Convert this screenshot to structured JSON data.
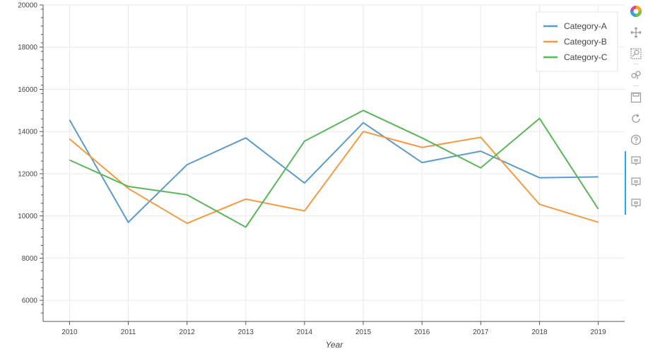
{
  "chart_data": {
    "type": "line",
    "xlabel": "Year",
    "ylabel": "",
    "x": [
      2010,
      2011,
      2012,
      2013,
      2014,
      2015,
      2016,
      2017,
      2018,
      2019
    ],
    "xlim": [
      2009.55,
      2019.45
    ],
    "ylim": [
      5000,
      20000
    ],
    "y_ticks": [
      6000,
      8000,
      10000,
      12000,
      14000,
      16000,
      18000,
      20000
    ],
    "grid": true,
    "legend_position": "top-right",
    "series": [
      {
        "name": "Category-A",
        "color": "#5b9bc9",
        "values": [
          14550,
          9700,
          12430,
          13700,
          11560,
          14420,
          12530,
          13070,
          11810,
          11850
        ]
      },
      {
        "name": "Category-B",
        "color": "#f59a43",
        "values": [
          13650,
          11300,
          9650,
          10800,
          10240,
          14000,
          13250,
          13730,
          10550,
          9700
        ]
      },
      {
        "name": "Category-C",
        "color": "#5bb55a",
        "values": [
          12650,
          11400,
          11000,
          9470,
          13540,
          15000,
          13700,
          12280,
          14620,
          10330
        ]
      }
    ]
  },
  "toolbar": {
    "items": [
      {
        "name": "bokeh-logo-icon"
      },
      {
        "name": "pan-icon"
      },
      {
        "name": "box-zoom-icon"
      },
      {
        "name": "wheel-zoom-icon"
      },
      {
        "name": "save-icon"
      },
      {
        "name": "reset-icon"
      },
      {
        "name": "help-icon"
      },
      {
        "name": "hover-icon"
      },
      {
        "name": "hover-icon"
      },
      {
        "name": "hover-icon"
      }
    ],
    "active_color": "#26aae1"
  }
}
